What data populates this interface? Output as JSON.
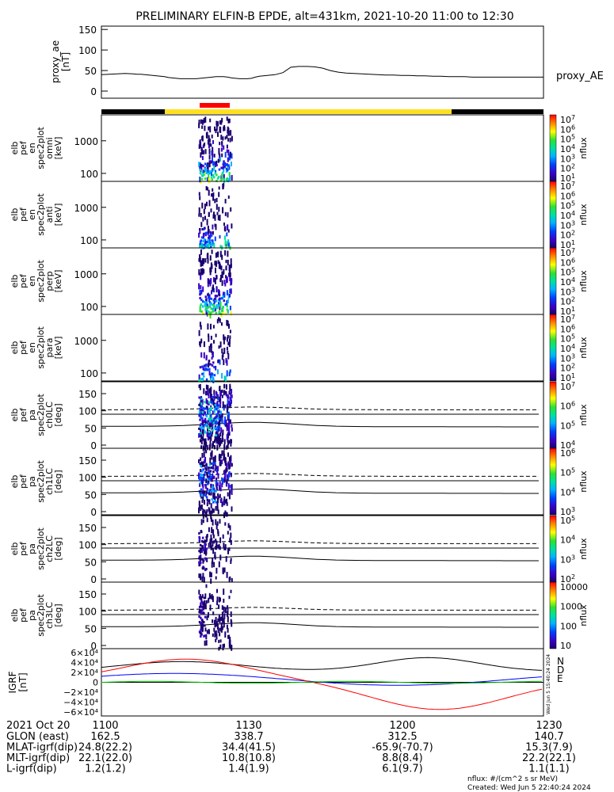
{
  "title": "PRELIMINARY ELFIN-B EPDE, alt=431km, 2021-10-20 11:00 to 12:30",
  "colorbar_unit": "nflux",
  "footer": {
    "units_note": "nflux: #/(cm^2 s sr MeV)",
    "created": "Created: Wed Jun  5 22:40:24 2024"
  },
  "timestamp_vertical": "Wed Jun  5 15:40:24 2024",
  "colors": {
    "sci_bar_black": "#000000",
    "sci_bar_yellow": "#ffe020",
    "sci_bar_red": "#ff0000",
    "grf_N": "#0000ff",
    "grf_D": "#ff0000",
    "grf_E": "#00cc00",
    "grf_mag": "#000000"
  },
  "chart_data": [
    {
      "id": "proxy_ae",
      "type": "line",
      "ylabel": [
        "proxy_ae",
        "[nT]"
      ],
      "yticks": [
        "150",
        "100",
        "50",
        "0"
      ],
      "ylim": [
        0,
        160
      ],
      "legend": "proxy_AE",
      "x_minutes": [
        0,
        10,
        20,
        30,
        40,
        45,
        50,
        55,
        60,
        65,
        70,
        75,
        80,
        85,
        90,
        95,
        100,
        105,
        110,
        115,
        120,
        125,
        130,
        135,
        140,
        145,
        150,
        155,
        160,
        165,
        170,
        175,
        180,
        185,
        190,
        195,
        200,
        210,
        220,
        230,
        240,
        250,
        260,
        270,
        280,
        290,
        300,
        310,
        320,
        330,
        340,
        350,
        360,
        370,
        380,
        390,
        400,
        410,
        420,
        430,
        440,
        450,
        460,
        470,
        480,
        490,
        500,
        510,
        520,
        530,
        540,
        550,
        560
      ],
      "values": [
        40,
        41,
        42,
        43,
        42,
        41,
        41,
        40,
        39,
        38,
        37,
        36,
        35,
        33,
        32,
        31,
        30,
        30,
        30,
        30,
        30,
        31,
        32,
        33,
        34,
        35,
        35,
        35,
        34,
        32,
        31,
        30,
        30,
        30,
        31,
        34,
        36,
        38,
        40,
        45,
        58,
        60,
        60,
        59,
        56,
        50,
        46,
        44,
        43,
        42,
        41,
        40,
        39,
        39,
        38,
        38,
        37,
        37,
        36,
        36,
        35,
        35,
        35,
        34,
        34,
        34,
        34,
        34,
        34,
        34,
        34,
        34,
        34
      ]
    },
    {
      "id": "spec_omni",
      "type": "heatmap",
      "ylabel": [
        "elb",
        "pef",
        "en",
        "spec2plot",
        "omni",
        "[keV]"
      ],
      "yticks": [
        "1000",
        "100"
      ],
      "colorbar_ticks": [
        "10^7",
        "10^6",
        "10^5",
        "10^4",
        "10^3",
        "10^2",
        "10^1"
      ],
      "axis": "energy"
    },
    {
      "id": "spec_anti",
      "type": "heatmap",
      "ylabel": [
        "elb",
        "pef",
        "en",
        "spec2plot",
        "anti",
        "[keV]"
      ],
      "yticks": [
        "1000",
        "100"
      ],
      "colorbar_ticks": [
        "10^7",
        "10^6",
        "10^5",
        "10^4",
        "10^3",
        "10^2",
        "10^1"
      ],
      "axis": "energy"
    },
    {
      "id": "spec_perp",
      "type": "heatmap",
      "ylabel": [
        "elb",
        "pef",
        "en",
        "spec2plot",
        "perp",
        "[keV]"
      ],
      "yticks": [
        "1000",
        "100"
      ],
      "colorbar_ticks": [
        "10^7",
        "10^6",
        "10^5",
        "10^4",
        "10^3",
        "10^2",
        "10^1"
      ],
      "axis": "energy"
    },
    {
      "id": "spec_para",
      "type": "heatmap",
      "ylabel": [
        "elb",
        "pef",
        "en",
        "spec2plot",
        "para",
        "[keV]"
      ],
      "yticks": [
        "1000",
        "100"
      ],
      "colorbar_ticks": [
        "10^7",
        "10^6",
        "10^5",
        "10^4",
        "10^3",
        "10^2",
        "10^1"
      ],
      "axis": "energy"
    },
    {
      "id": "pa_ch0LC",
      "type": "heatmap",
      "ylabel": [
        "elb",
        "pef",
        "pa",
        "spec2plot",
        "ch0LC",
        "[deg]"
      ],
      "yticks": [
        "150",
        "100",
        "50",
        "0"
      ],
      "colorbar_ticks": [
        "10^7",
        "10^6",
        "10^5",
        "10^4"
      ],
      "axis": "pitch"
    },
    {
      "id": "pa_ch1LC",
      "type": "heatmap",
      "ylabel": [
        "elb",
        "pef",
        "pa",
        "spec2plot",
        "ch1LC",
        "[deg]"
      ],
      "yticks": [
        "150",
        "100",
        "50",
        "0"
      ],
      "colorbar_ticks": [
        "10^6",
        "10^5",
        "10^4",
        "10^3"
      ],
      "axis": "pitch"
    },
    {
      "id": "pa_ch2LC",
      "type": "heatmap",
      "ylabel": [
        "elb",
        "pef",
        "pa",
        "spec2plot",
        "ch2LC",
        "[deg]"
      ],
      "yticks": [
        "150",
        "100",
        "50",
        "0"
      ],
      "colorbar_ticks": [
        "10^5",
        "10^4",
        "10^3",
        "10^2"
      ],
      "axis": "pitch"
    },
    {
      "id": "pa_ch3LC",
      "type": "heatmap",
      "ylabel": [
        "elb",
        "pef",
        "pa",
        "spec2plot",
        "ch3LC",
        "[deg]"
      ],
      "yticks": [
        "150",
        "100",
        "50",
        "0"
      ],
      "colorbar_ticks": [
        "10000",
        "1000",
        "100",
        "10"
      ],
      "axis": "pitch"
    },
    {
      "id": "igrf",
      "type": "line",
      "ylabel": [
        "IGRF",
        "[nT]"
      ],
      "yticks": [
        "6×10⁴",
        "4×10⁴",
        "2×10⁴",
        "0",
        "−2×10⁴",
        "−4×10⁴",
        "−6×10⁴"
      ],
      "ylim": [
        -65000,
        65000
      ],
      "series": [
        {
          "name": "N",
          "color": "#0000ff"
        },
        {
          "name": "D",
          "color": "#ff0000"
        },
        {
          "name": "E",
          "color": "#00cc00"
        }
      ]
    }
  ],
  "x_axis": {
    "date_label": "2021 Oct 20",
    "ticks": [
      "1100",
      "1130",
      "1200",
      "1230"
    ],
    "rows": [
      {
        "label": "GLON (east)",
        "values": [
          "162.5",
          "338.7",
          "312.5",
          "140.7"
        ]
      },
      {
        "label": "MLAT-igrf(dip)",
        "values": [
          "24.8(22.2)",
          "34.4(41.5)",
          "-65.9(-70.7)",
          "15.3(7.9)"
        ]
      },
      {
        "label": "MLT-igrf(dip)",
        "values": [
          "22.1(22.0)",
          "10.8(10.8)",
          "8.8(8.4)",
          "22.2(22.1)"
        ]
      },
      {
        "label": "L-igrf(dip)",
        "values": [
          "1.2(1.2)",
          "1.4(1.9)",
          "6.1(9.7)",
          "1.1(1.1)"
        ]
      }
    ]
  }
}
